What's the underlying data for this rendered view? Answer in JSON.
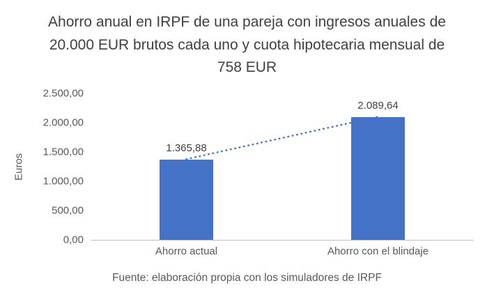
{
  "chart_data": {
    "type": "bar",
    "title": "Ahorro anual en IRPF de una pareja con ingresos anuales de 20.000 EUR brutos cada uno y cuota hipotecaria mensual de 758 EUR",
    "ylabel": "Euros",
    "xlabel": "",
    "categories": [
      "Ahorro actual",
      "Ahorro con el blindaje"
    ],
    "values": [
      1365.88,
      2089.64
    ],
    "value_labels": [
      "1.365,88",
      "2.089,64"
    ],
    "ylim": [
      0,
      2500
    ],
    "ytick_labels": [
      "0,00",
      "500,00",
      "1.000,00",
      "1.500,00",
      "2.000,00",
      "2.500,00"
    ],
    "grid": "off",
    "legend": "none",
    "bar_color": "#4472c4",
    "trendline": {
      "type": "linear",
      "style": "dotted",
      "color": "#4472c4"
    },
    "caption": "Fuente: elaboración propia con los simuladores de IRPF",
    "axis_line_color": "#bfbfbf",
    "text_color": "#595959"
  }
}
